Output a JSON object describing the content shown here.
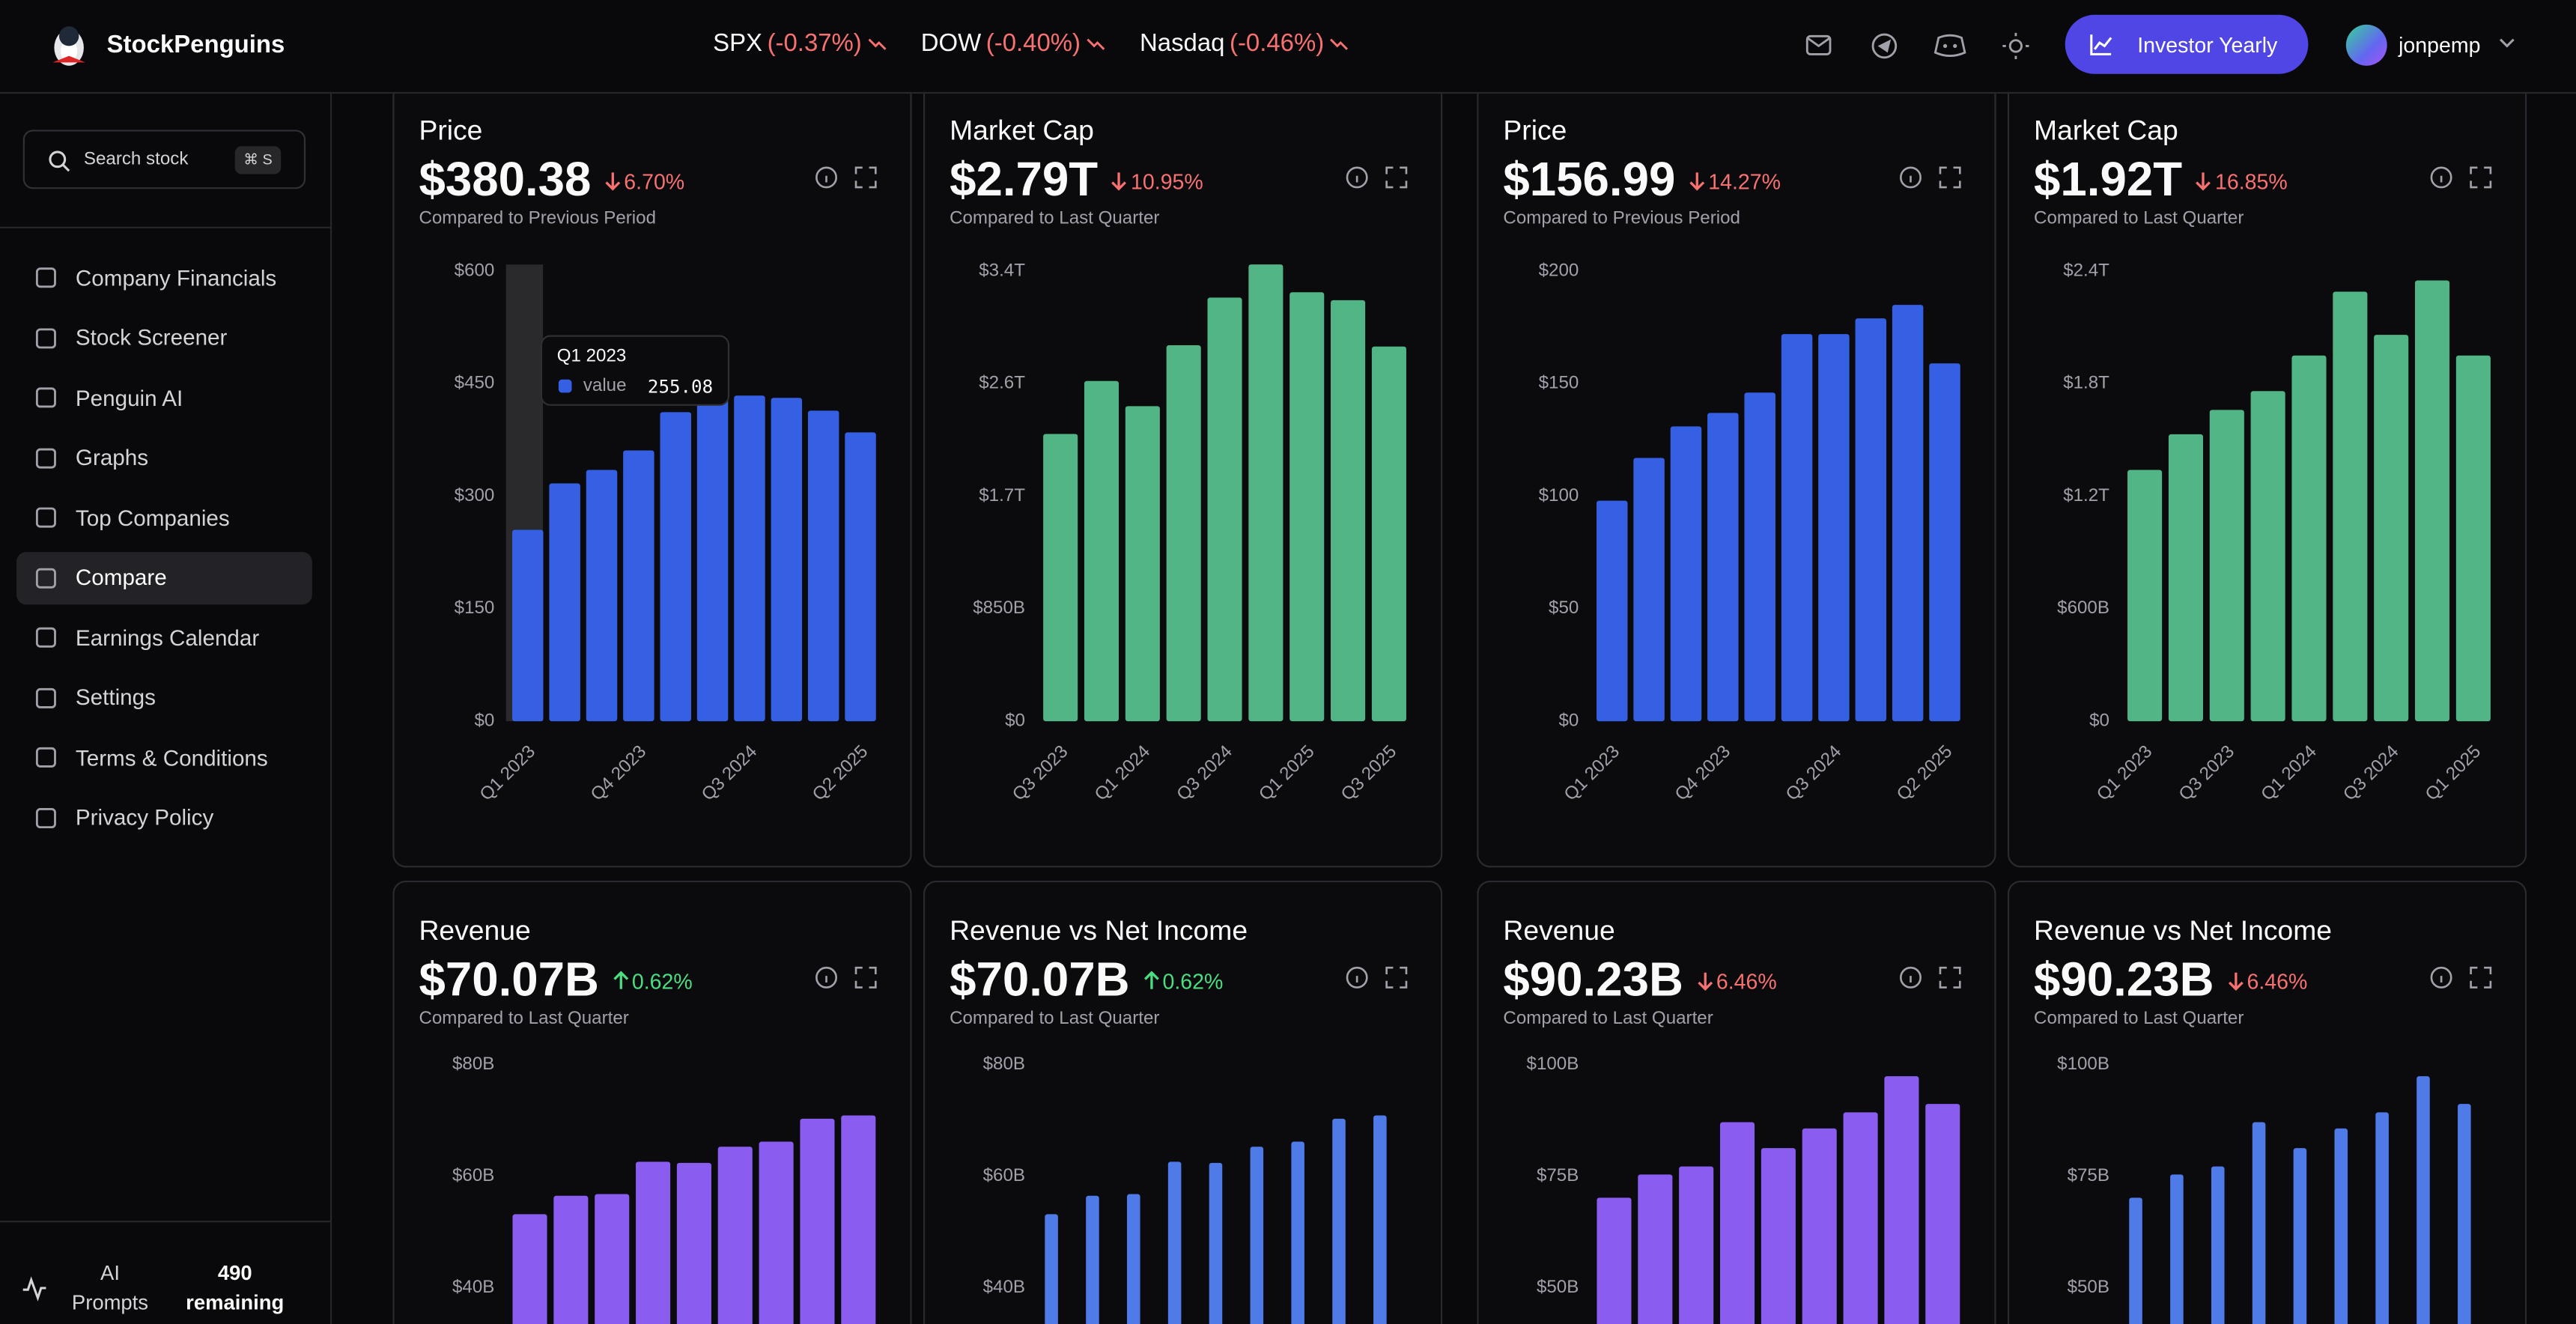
{
  "header": {
    "brand": "StockPenguins",
    "tickers": [
      {
        "symbol": "SPX",
        "change": "(-0.37%)"
      },
      {
        "symbol": "DOW",
        "change": "(-0.40%)"
      },
      {
        "symbol": "Nasdaq",
        "change": "(-0.46%)"
      }
    ],
    "plan_button": "Investor Yearly",
    "username": "jonpemp"
  },
  "sidebar": {
    "search": {
      "placeholder": "Search stock",
      "shortcut": "⌘ S"
    },
    "nav": [
      {
        "label": "Company Financials"
      },
      {
        "label": "Stock Screener"
      },
      {
        "label": "Penguin AI"
      },
      {
        "label": "Graphs"
      },
      {
        "label": "Top Companies"
      },
      {
        "label": "Compare",
        "active": true
      },
      {
        "label": "Earnings Calendar"
      },
      {
        "label": "Settings"
      },
      {
        "label": "Terms & Conditions"
      },
      {
        "label": "Privacy Policy"
      }
    ],
    "ai_prompts": {
      "label": "AI Prompts",
      "count": 490,
      "count_label": "remaining"
    }
  },
  "cards": [
    {
      "title": "Price",
      "value": "$380.38",
      "change": "6.70%",
      "direction": "down",
      "comparison": "Compared to Previous Period",
      "chart": {
        "type": "bar",
        "color": "#3560e3",
        "categories": [
          "Q1 2023",
          null,
          null,
          "Q4 2023",
          null,
          null,
          "Q3 2024",
          null,
          null,
          "Q2 2025"
        ],
        "values": [
          255.08,
          317,
          335,
          361,
          412,
          432,
          434,
          431,
          414,
          385
        ],
        "ylim": [
          0,
          600
        ],
        "yticks": [
          {
            "value": 0,
            "label": "$0"
          },
          {
            "value": 150,
            "label": "$150"
          },
          {
            "value": 300,
            "label": "$300"
          },
          {
            "value": 450,
            "label": "$450"
          },
          {
            "value": 600,
            "label": "$600"
          }
        ]
      },
      "tooltip": {
        "series": "value"
      }
    },
    {
      "title": "Market Cap",
      "value": "$2.79T",
      "change": "10.95%",
      "direction": "down",
      "comparison": "Compared to Last Quarter",
      "chart": {
        "type": "bar",
        "color": "#52b586",
        "categories": [
          "Q3 2023",
          null,
          "Q1 2024",
          null,
          "Q3 2024",
          null,
          "Q1 2025",
          null,
          "Q3 2025"
        ],
        "values": [
          2.17,
          2.57,
          2.38,
          2.84,
          3.2,
          3.45,
          3.24,
          3.18,
          2.83
        ],
        "ylim": [
          0,
          3.4
        ],
        "yticks": [
          {
            "value": 0,
            "label": "$0"
          },
          {
            "value": 0.85,
            "label": "$850B"
          },
          {
            "value": 1.7,
            "label": "$1.7T"
          },
          {
            "value": 2.55,
            "label": "$2.6T"
          },
          {
            "value": 3.4,
            "label": "$3.4T"
          }
        ]
      }
    },
    {
      "title": "Price",
      "value": "$156.99",
      "change": "14.27%",
      "direction": "down",
      "comparison": "Compared to Previous Period",
      "chart": {
        "type": "bar",
        "color": "#3560e3",
        "categories": [
          "Q1 2023",
          null,
          null,
          "Q4 2023",
          null,
          null,
          "Q3 2024",
          null,
          null,
          "Q2 2025"
        ],
        "values": [
          98,
          117,
          131,
          137,
          146,
          172,
          172,
          179,
          185,
          159
        ],
        "ylim": [
          0,
          200
        ],
        "yticks": [
          {
            "value": 0,
            "label": "$0"
          },
          {
            "value": 50,
            "label": "$50"
          },
          {
            "value": 100,
            "label": "$100"
          },
          {
            "value": 150,
            "label": "$150"
          },
          {
            "value": 200,
            "label": "$200"
          }
        ]
      }
    },
    {
      "title": "Market Cap",
      "value": "$1.92T",
      "change": "16.85%",
      "direction": "down",
      "comparison": "Compared to Last Quarter",
      "chart": {
        "type": "bar",
        "color": "#52b586",
        "categories": [
          "Q1 2023",
          null,
          "Q3 2023",
          null,
          "Q1 2024",
          null,
          "Q3 2024",
          null,
          "Q1 2025"
        ],
        "values": [
          1.34,
          1.53,
          1.66,
          1.76,
          1.95,
          2.29,
          2.06,
          2.35,
          1.95
        ],
        "ylim": [
          0,
          2.4
        ],
        "yticks": [
          {
            "value": 0,
            "label": "$0"
          },
          {
            "value": 0.6,
            "label": "$600B"
          },
          {
            "value": 1.2,
            "label": "$1.2T"
          },
          {
            "value": 1.8,
            "label": "$1.8T"
          },
          {
            "value": 2.4,
            "label": "$2.4T"
          }
        ]
      }
    },
    {
      "title": "Revenue",
      "value": "$70.07B",
      "change": "0.62%",
      "direction": "up",
      "comparison": "Compared to Last Quarter",
      "chart": {
        "type": "bar",
        "color": "#8a5cf0",
        "values": [
          53.2,
          56.5,
          56.8,
          62.6,
          62.4,
          65.3,
          66.2,
          70.3,
          70.9
        ],
        "ylim": [
          33.2,
          80
        ],
        "yticks": [
          {
            "value": 40,
            "label": "$40B"
          },
          {
            "value": 60,
            "label": "$60B"
          },
          {
            "value": 80,
            "label": "$80B"
          }
        ]
      }
    },
    {
      "title": "Revenue vs Net Income",
      "value": "$70.07B",
      "change": "0.62%",
      "direction": "up",
      "comparison": "Compared to Last Quarter",
      "chart": {
        "type": "grouped_bar",
        "series": [
          {
            "color": "#4f7be8",
            "values": [
              53.2,
              56.5,
              56.8,
              62.6,
              62.4,
              65.3,
              66.2,
              70.3,
              70.9
            ]
          }
        ],
        "ylim": [
          33.2,
          80
        ],
        "yticks": [
          {
            "value": 40,
            "label": "$40B"
          },
          {
            "value": 60,
            "label": "$60B"
          },
          {
            "value": 80,
            "label": "$80B"
          }
        ]
      }
    },
    {
      "title": "Revenue",
      "value": "$90.23B",
      "change": "6.46%",
      "direction": "down",
      "comparison": "Compared to Last Quarter",
      "chart": {
        "type": "bar",
        "color": "#8a5cf0",
        "values": [
          70.2,
          75.4,
          77.2,
          87.1,
          81.3,
          85.7,
          89.3,
          97.4,
          91.2
        ],
        "ylim": [
          41.5,
          100
        ],
        "yticks": [
          {
            "value": 50,
            "label": "$50B"
          },
          {
            "value": 75,
            "label": "$75B"
          },
          {
            "value": 100,
            "label": "$100B"
          }
        ]
      }
    },
    {
      "title": "Revenue vs Net Income",
      "value": "$90.23B",
      "change": "6.46%",
      "direction": "down",
      "comparison": "Compared to Last Quarter",
      "chart": {
        "type": "grouped_bar",
        "series": [
          {
            "color": "#4f7be8",
            "values": [
              70.2,
              75.4,
              77.2,
              87.1,
              81.3,
              85.7,
              89.3,
              97.4,
              91.2
            ]
          }
        ],
        "ylim": [
          41.5,
          100
        ],
        "yticks": [
          {
            "value": 50,
            "label": "$50B"
          },
          {
            "value": 75,
            "label": "$75B"
          },
          {
            "value": 100,
            "label": "$100B"
          }
        ]
      }
    }
  ]
}
